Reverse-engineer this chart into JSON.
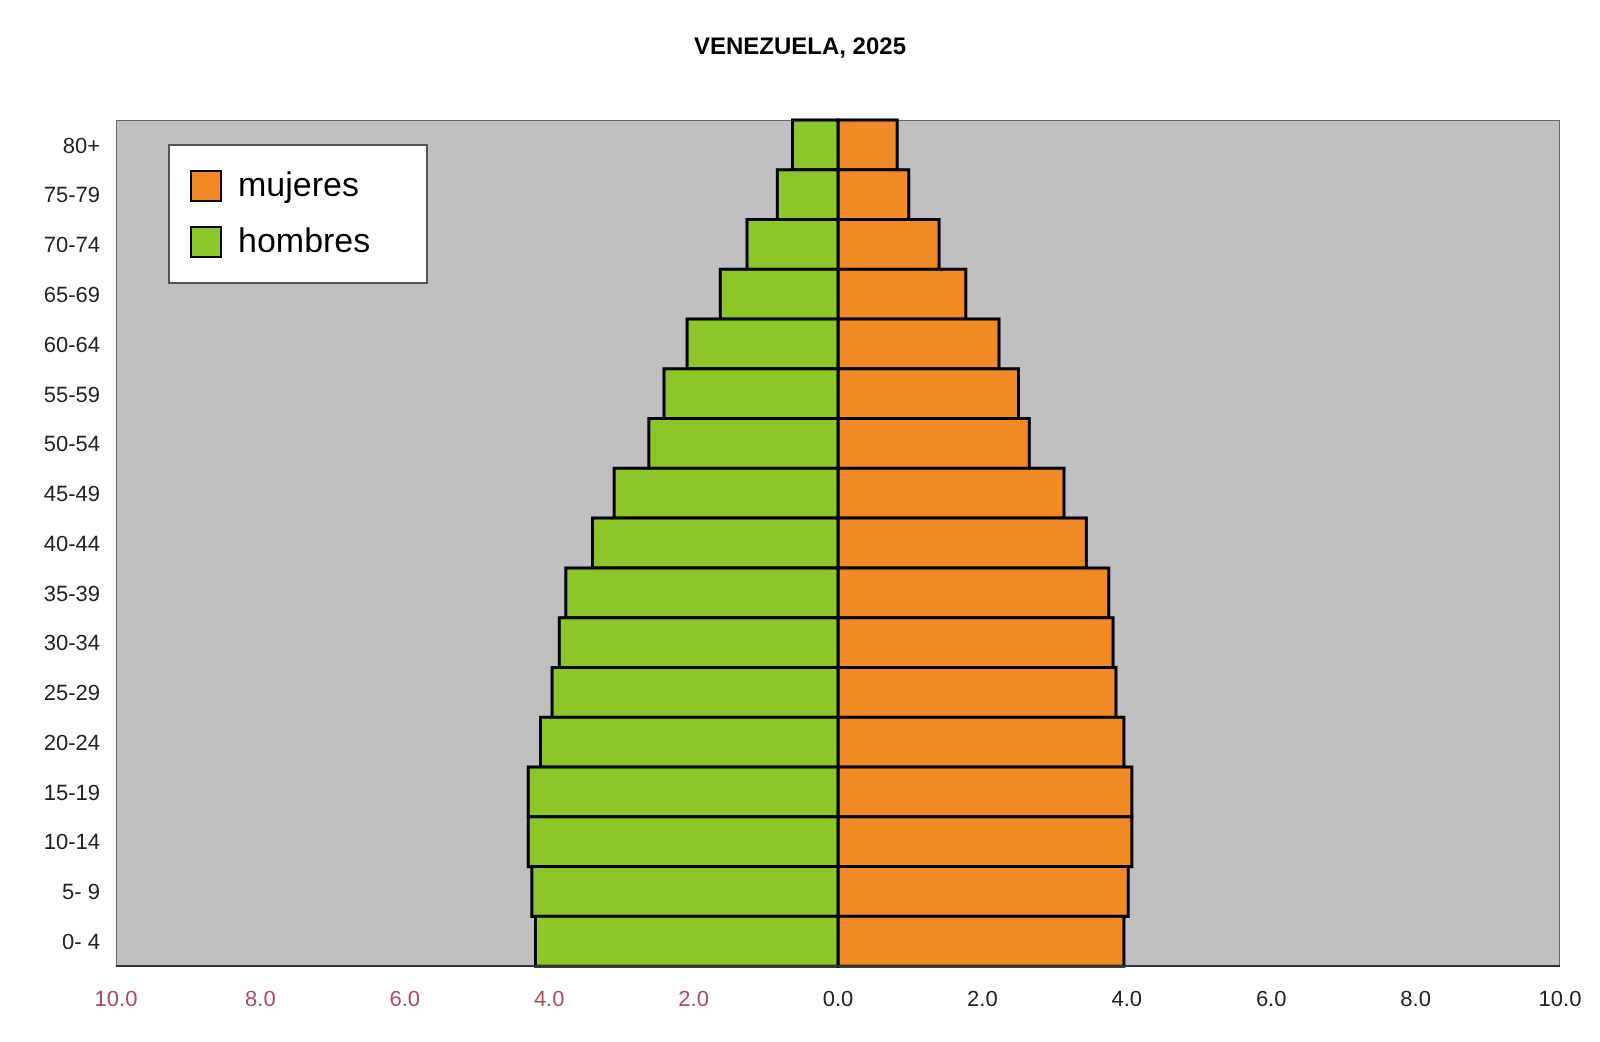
{
  "chart_data": {
    "type": "bar",
    "title": "VENEZUELA, 2025",
    "orientation": "horizontal",
    "stacked": true,
    "legend": "top left",
    "categories": [
      "80+",
      "75-79",
      "70-74",
      "65-69",
      "60-64",
      "55-59",
      "50-54",
      "45-49",
      "40-44",
      "35-39",
      "30-34",
      "25-29",
      "20-24",
      "15-19",
      "10-14",
      "5- 9",
      "0- 4"
    ],
    "series": [
      {
        "name": "mujeres",
        "color": "#f08a24",
        "values": [
          0.82,
          0.98,
          1.4,
          1.77,
          2.23,
          2.5,
          2.65,
          3.13,
          3.44,
          3.75,
          3.81,
          3.85,
          3.96,
          4.07,
          4.07,
          4.02,
          3.96
        ]
      },
      {
        "name": "hombres",
        "color": "#8cc629",
        "values": [
          -0.63,
          -0.84,
          -1.26,
          -1.63,
          -2.09,
          -2.41,
          -2.62,
          -3.1,
          -3.4,
          -3.77,
          -3.86,
          -3.96,
          -4.12,
          -4.29,
          -4.29,
          -4.24,
          -4.19
        ]
      }
    ],
    "xlim": [
      -10,
      10
    ],
    "xticks": [
      {
        "value": -10,
        "label": "10.0"
      },
      {
        "value": -8,
        "label": "8.0"
      },
      {
        "value": -6,
        "label": "6.0"
      },
      {
        "value": -4,
        "label": "4.0"
      },
      {
        "value": -2,
        "label": "2.0"
      },
      {
        "value": 0,
        "label": "0.0"
      },
      {
        "value": 2,
        "label": "2.0"
      },
      {
        "value": 4,
        "label": "4.0"
      },
      {
        "value": 6,
        "label": "6.0"
      },
      {
        "value": 8,
        "label": "8.0"
      },
      {
        "value": 10,
        "label": "10.0"
      }
    ]
  }
}
